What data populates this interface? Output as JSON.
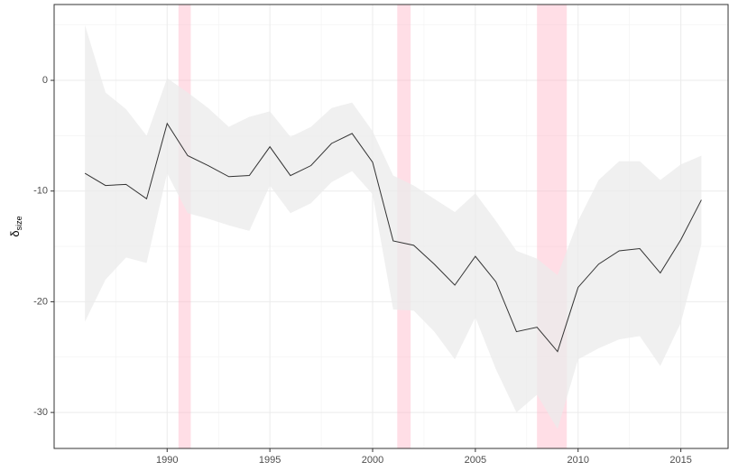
{
  "chart_data": {
    "type": "line",
    "ylabel": "δ",
    "ylabel_sub": "size",
    "x": [
      1986,
      1987,
      1988,
      1989,
      1990,
      1991,
      1992,
      1993,
      1994,
      1995,
      1996,
      1997,
      1998,
      1999,
      2000,
      2001,
      2002,
      2003,
      2004,
      2005,
      2006,
      2007,
      2008,
      2009,
      2010,
      2011,
      2012,
      2013,
      2014,
      2015,
      2016
    ],
    "series": [
      {
        "color": "#333333",
        "values": [
          -8.4,
          -9.5,
          -9.4,
          -10.7,
          -3.9,
          -6.8,
          -7.7,
          -8.7,
          -8.6,
          -6.0,
          -8.6,
          -7.7,
          -5.7,
          -4.8,
          -7.4,
          -14.5,
          -14.9,
          -16.6,
          -18.5,
          -15.9,
          -18.2,
          -22.7,
          -22.3,
          -24.5,
          -18.7,
          -16.6,
          -15.4,
          -15.2,
          -17.4,
          -14.4,
          -10.8
        ],
        "upper": [
          5.0,
          -1.1,
          -2.6,
          -5.0,
          0.2,
          -1.1,
          -2.5,
          -4.2,
          -3.3,
          -2.8,
          -5.1,
          -4.2,
          -2.5,
          -2.0,
          -4.6,
          -8.6,
          -9.5,
          -10.7,
          -11.9,
          -10.2,
          -12.7,
          -15.4,
          -16.1,
          -17.6,
          -12.7,
          -9.0,
          -7.3,
          -7.3,
          -9.0,
          -7.6,
          -6.8
        ],
        "lower": [
          -21.8,
          -18.0,
          -16.0,
          -16.5,
          -8.4,
          -12.0,
          -12.5,
          -13.1,
          -13.6,
          -9.5,
          -12.0,
          -11.1,
          -9.2,
          -8.2,
          -10.3,
          -20.7,
          -20.8,
          -22.7,
          -25.2,
          -21.4,
          -26.1,
          -30.0,
          -28.4,
          -31.5,
          -25.2,
          -24.2,
          -23.4,
          -23.1,
          -25.8,
          -21.9,
          -14.8
        ],
        "band_color": "#ebebeb"
      }
    ],
    "shaded_periods": [
      [
        1990.55,
        1991.15
      ],
      [
        2001.2,
        2001.85
      ],
      [
        2008.0,
        2009.45
      ]
    ],
    "shade_color": "#ffb6c8",
    "xlim": [
      1984.5,
      2017.3
    ],
    "ylim": [
      -33.25,
      6.85
    ],
    "xticks": [
      1990,
      1995,
      2000,
      2005,
      2010,
      2015
    ],
    "yticks": [
      -30,
      -20,
      -10,
      0
    ],
    "x_minor_grid": [
      1987.5,
      1992.5,
      1997.5,
      2002.5,
      2007.5,
      2012.5
    ],
    "y_minor_grid": [
      -25,
      -15,
      -5,
      5
    ],
    "grid": true
  }
}
